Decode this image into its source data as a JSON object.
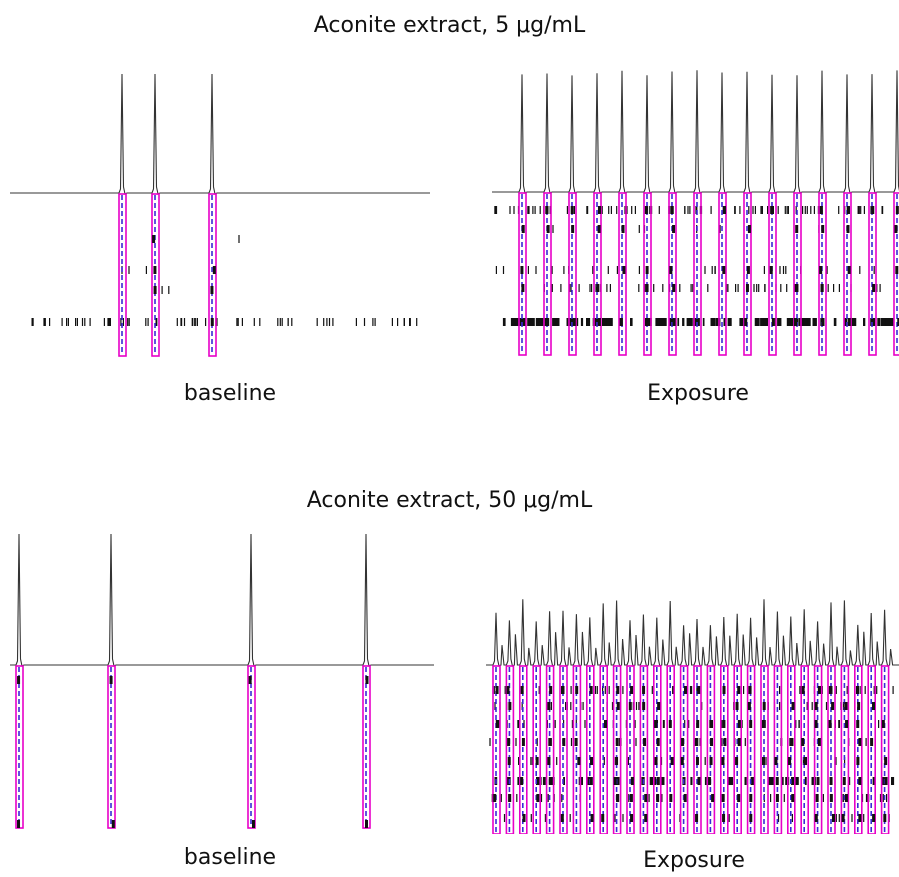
{
  "sections": [
    {
      "title": "Aconite extract, 5 μg/mL",
      "panels": [
        {
          "caption": "baseline",
          "spike_count": 3
        },
        {
          "caption": "Exposure",
          "spike_count": 16
        }
      ]
    },
    {
      "title": "Aconite extract, 50 μg/mL",
      "panels": [
        {
          "caption": "baseline",
          "spike_count": 4
        },
        {
          "caption": "Exposure",
          "spike_count": 30
        }
      ]
    }
  ],
  "colors": {
    "trace": "#333333",
    "burst_box": "#e800c8",
    "burst_dash": "#3a2ad6",
    "raster": "#111111"
  }
}
